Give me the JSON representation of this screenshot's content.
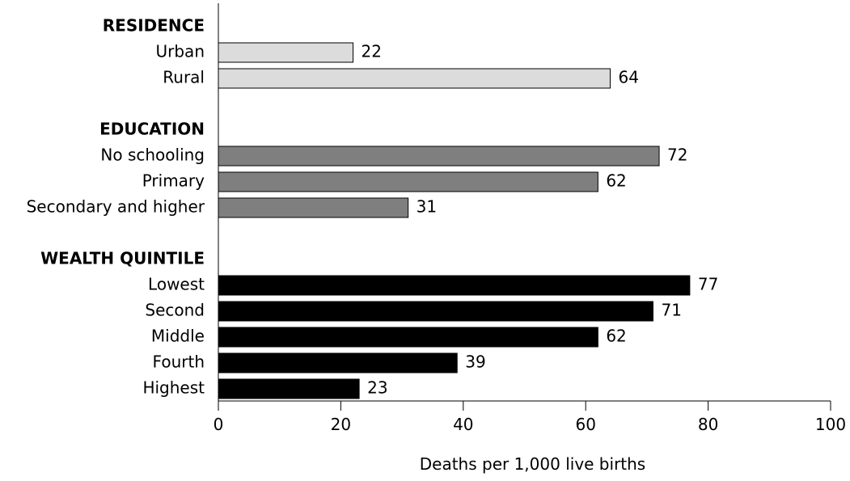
{
  "chart_data": {
    "type": "bar",
    "orientation": "horizontal",
    "xlabel": "Deaths per 1,000 live births",
    "xlim": [
      0,
      100
    ],
    "xticks": [
      0,
      20,
      40,
      60,
      80,
      100
    ],
    "grid": false,
    "groups": [
      {
        "name": "RESIDENCE",
        "color": "#dcdcdc",
        "categories": [
          "Urban",
          "Rural"
        ],
        "values": [
          22,
          64
        ]
      },
      {
        "name": "EDUCATION",
        "color": "#7f7f7f",
        "categories": [
          "No schooling",
          "Primary",
          "Secondary and higher"
        ],
        "values": [
          72,
          62,
          31
        ]
      },
      {
        "name": "WEALTH QUINTILE",
        "color": "#000000",
        "categories": [
          "Lowest",
          "Second",
          "Middle",
          "Fourth",
          "Highest"
        ],
        "values": [
          77,
          71,
          62,
          39,
          23
        ]
      }
    ]
  }
}
